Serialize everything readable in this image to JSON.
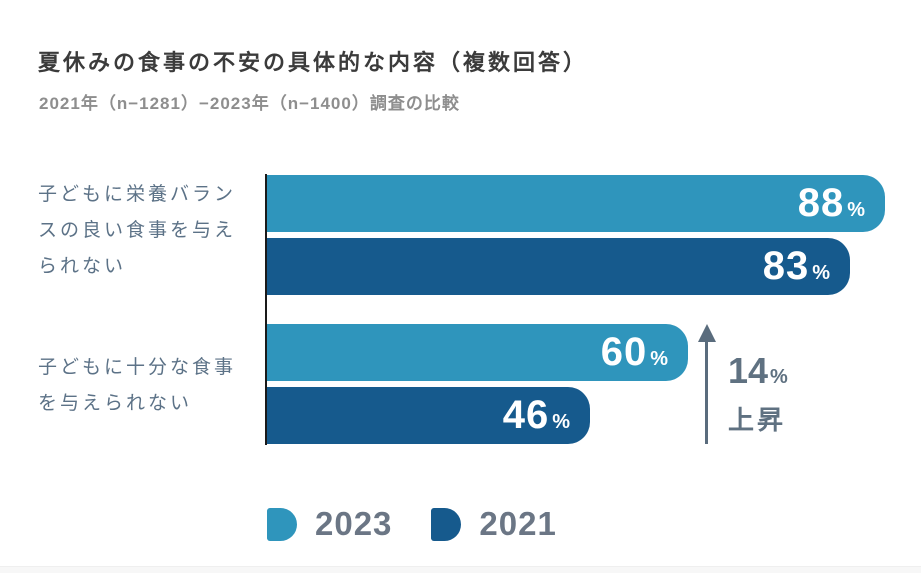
{
  "chart_data": {
    "type": "bar",
    "orientation": "horizontal",
    "title": "夏休みの食事の不安の具体的な内容（複数回答）",
    "subtitle": "2021年（n−1281）−2023年（n−1400）調査の比較",
    "unit": "%",
    "xlim": [
      0,
      100
    ],
    "grid": false,
    "legend_position": "bottom",
    "categories": [
      "子どもに栄養バランスの良い食事を与えられない",
      "子どもに十分な食事を与えられない"
    ],
    "category_lines": [
      [
        "子どもに栄養バラン",
        "スの良い食事を与え",
        "られない"
      ],
      [
        "子どもに十分な食事",
        "を与えられない"
      ]
    ],
    "series": [
      {
        "name": "2023",
        "color": "#2F95BC",
        "values": [
          88,
          60
        ]
      },
      {
        "name": "2021",
        "color": "#165A8D",
        "values": [
          83,
          46
        ]
      }
    ],
    "annotation": {
      "value": 14,
      "unit": "%",
      "label": "上昇",
      "direction": "up",
      "refers_to": "子どもに十分な食事を与えられない"
    }
  },
  "colors": {
    "title_text": "#3B3B3B",
    "subtitle_text": "#8E8E8E",
    "category_text": "#5C7287",
    "annotation_text": "#5F7181",
    "legend_text": "#6B7685",
    "axis_line": "#1A1A1A",
    "value_text": "#FFFFFF"
  }
}
